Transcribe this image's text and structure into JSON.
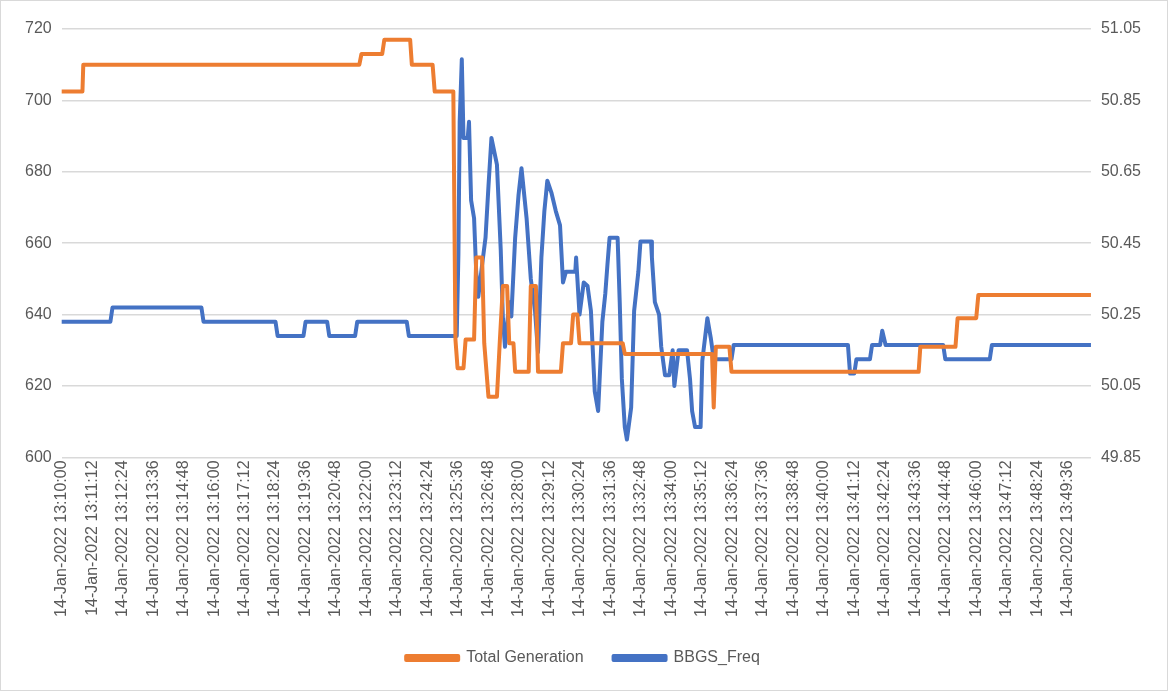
{
  "chart_data": {
    "type": "line",
    "xlim": [
      "2022-01-14T13:10:00",
      "2022-01-14T13:50:31"
    ],
    "xticks": [
      {
        "value": "2022-01-14T13:10:00",
        "label": "14-Jan-2022 13:10:00"
      },
      {
        "value": "2022-01-14T13:11:12",
        "label": "14-Jan-2022 13:11:12"
      },
      {
        "value": "2022-01-14T13:12:24",
        "label": "14-Jan-2022 13:12:24"
      },
      {
        "value": "2022-01-14T13:13:36",
        "label": "14-Jan-2022 13:13:36"
      },
      {
        "value": "2022-01-14T13:14:48",
        "label": "14-Jan-2022 13:14:48"
      },
      {
        "value": "2022-01-14T13:16:00",
        "label": "14-Jan-2022 13:16:00"
      },
      {
        "value": "2022-01-14T13:17:12",
        "label": "14-Jan-2022 13:17:12"
      },
      {
        "value": "2022-01-14T13:18:24",
        "label": "14-Jan-2022 13:18:24"
      },
      {
        "value": "2022-01-14T13:19:36",
        "label": "14-Jan-2022 13:19:36"
      },
      {
        "value": "2022-01-14T13:20:48",
        "label": "14-Jan-2022 13:20:48"
      },
      {
        "value": "2022-01-14T13:22:00",
        "label": "14-Jan-2022 13:22:00"
      },
      {
        "value": "2022-01-14T13:23:12",
        "label": "14-Jan-2022 13:23:12"
      },
      {
        "value": "2022-01-14T13:24:24",
        "label": "14-Jan-2022 13:24:24"
      },
      {
        "value": "2022-01-14T13:25:36",
        "label": "14-Jan-2022 13:25:36"
      },
      {
        "value": "2022-01-14T13:26:48",
        "label": "14-Jan-2022 13:26:48"
      },
      {
        "value": "2022-01-14T13:28:00",
        "label": "14-Jan-2022 13:28:00"
      },
      {
        "value": "2022-01-14T13:29:12",
        "label": "14-Jan-2022 13:29:12"
      },
      {
        "value": "2022-01-14T13:30:24",
        "label": "14-Jan-2022 13:30:24"
      },
      {
        "value": "2022-01-14T13:31:36",
        "label": "14-Jan-2022 13:31:36"
      },
      {
        "value": "2022-01-14T13:32:48",
        "label": "14-Jan-2022 13:32:48"
      },
      {
        "value": "2022-01-14T13:34:00",
        "label": "14-Jan-2022 13:34:00"
      },
      {
        "value": "2022-01-14T13:35:12",
        "label": "14-Jan-2022 13:35:12"
      },
      {
        "value": "2022-01-14T13:36:24",
        "label": "14-Jan-2022 13:36:24"
      },
      {
        "value": "2022-01-14T13:37:36",
        "label": "14-Jan-2022 13:37:36"
      },
      {
        "value": "2022-01-14T13:38:48",
        "label": "14-Jan-2022 13:38:48"
      },
      {
        "value": "2022-01-14T13:40:00",
        "label": "14-Jan-2022 13:40:00"
      },
      {
        "value": "2022-01-14T13:41:12",
        "label": "14-Jan-2022 13:41:12"
      },
      {
        "value": "2022-01-14T13:42:24",
        "label": "14-Jan-2022 13:42:24"
      },
      {
        "value": "2022-01-14T13:43:36",
        "label": "14-Jan-2022 13:43:36"
      },
      {
        "value": "2022-01-14T13:44:48",
        "label": "14-Jan-2022 13:44:48"
      },
      {
        "value": "2022-01-14T13:46:00",
        "label": "14-Jan-2022 13:46:00"
      },
      {
        "value": "2022-01-14T13:47:12",
        "label": "14-Jan-2022 13:47:12"
      },
      {
        "value": "2022-01-14T13:48:24",
        "label": "14-Jan-2022 13:48:24"
      },
      {
        "value": "2022-01-14T13:49:36",
        "label": "14-Jan-2022 13:49:36"
      }
    ],
    "ylim": [
      600,
      720
    ],
    "yticks": [
      600,
      620,
      640,
      660,
      680,
      700,
      720
    ],
    "y2lim": [
      49.85,
      51.05
    ],
    "y2ticks": [
      49.85,
      50.05,
      50.25,
      50.45,
      50.65,
      50.85,
      51.05
    ],
    "grid": "y",
    "legend": "bottom",
    "marker": "none",
    "line_style": "solid",
    "series": [
      {
        "name": "Total Generation",
        "color": "#ed7d31",
        "x": [
          "2022-01-14T13:10:00",
          "2022-01-14T13:10:49",
          "2022-01-14T13:10:51",
          "2022-01-14T13:21:43",
          "2022-01-14T13:21:48",
          "2022-01-14T13:22:37",
          "2022-01-14T13:22:42",
          "2022-01-14T13:23:43",
          "2022-01-14T13:23:47",
          "2022-01-14T13:24:36",
          "2022-01-14T13:24:41",
          "2022-01-14T13:25:25",
          "2022-01-14T13:25:27",
          "2022-01-14T13:25:30",
          "2022-01-14T13:25:35",
          "2022-01-14T13:25:49",
          "2022-01-14T13:25:54",
          "2022-01-14T13:26:14",
          "2022-01-14T13:26:19",
          "2022-01-14T13:26:33",
          "2022-01-14T13:26:38",
          "2022-01-14T13:26:48",
          "2022-01-14T13:27:08",
          "2022-01-14T13:27:15",
          "2022-01-14T13:27:22",
          "2022-01-14T13:27:32",
          "2022-01-14T13:27:37",
          "2022-01-14T13:27:47",
          "2022-01-14T13:27:51",
          "2022-01-14T13:28:23",
          "2022-01-14T13:28:28",
          "2022-01-14T13:28:40",
          "2022-01-14T13:28:45",
          "2022-01-14T13:29:39",
          "2022-01-14T13:29:44",
          "2022-01-14T13:30:03",
          "2022-01-14T13:30:08",
          "2022-01-14T13:30:18",
          "2022-01-14T13:30:23",
          "2022-01-14T13:32:05",
          "2022-01-14T13:32:10",
          "2022-01-14T13:35:36",
          "2022-01-14T13:35:40",
          "2022-01-14T13:35:45",
          "2022-01-14T13:36:17",
          "2022-01-14T13:36:22",
          "2022-01-14T13:43:44",
          "2022-01-14T13:43:48",
          "2022-01-14T13:45:11",
          "2022-01-14T13:45:16",
          "2022-01-14T13:46:00",
          "2022-01-14T13:46:05",
          "2022-01-14T13:50:31"
        ],
        "values": [
          702.5,
          702.5,
          710,
          710,
          713,
          713,
          717,
          717,
          710,
          710,
          702.5,
          702.5,
          675,
          633,
          625,
          625,
          633,
          633,
          656,
          656,
          632,
          617,
          617,
          633,
          648,
          648,
          632,
          632,
          624,
          624,
          648,
          648,
          624,
          624,
          632,
          632,
          640,
          640,
          632,
          632,
          629,
          629,
          614,
          631,
          631,
          624,
          624,
          631,
          631,
          639,
          639,
          645.5,
          645.5
        ]
      },
      {
        "name": "BBGS_Freq",
        "color": "#4472c4",
        "axis": "y2",
        "x": [
          "2022-01-14T13:10:00",
          "2022-01-14T13:11:55",
          "2022-01-14T13:12:00",
          "2022-01-14T13:15:30",
          "2022-01-14T13:15:35",
          "2022-01-14T13:18:25",
          "2022-01-14T13:18:30",
          "2022-01-14T13:19:31",
          "2022-01-14T13:19:36",
          "2022-01-14T13:20:27",
          "2022-01-14T13:20:32",
          "2022-01-14T13:21:33",
          "2022-01-14T13:21:38",
          "2022-01-14T13:23:35",
          "2022-01-14T13:23:40",
          "2022-01-14T13:25:33",
          "2022-01-14T13:25:37",
          "2022-01-14T13:25:40",
          "2022-01-14T13:25:45",
          "2022-01-14T13:25:49",
          "2022-01-14T13:25:59",
          "2022-01-14T13:26:02",
          "2022-01-14T13:26:07",
          "2022-01-14T13:26:14",
          "2022-01-14T13:26:19",
          "2022-01-14T13:26:24",
          "2022-01-14T13:26:33",
          "2022-01-14T13:26:41",
          "2022-01-14T13:26:48",
          "2022-01-14T13:26:55",
          "2022-01-14T13:27:08",
          "2022-01-14T13:27:17",
          "2022-01-14T13:27:22",
          "2022-01-14T13:27:27",
          "2022-01-14T13:27:37",
          "2022-01-14T13:27:42",
          "2022-01-14T13:27:51",
          "2022-01-14T13:27:59",
          "2022-01-14T13:28:06",
          "2022-01-14T13:28:18",
          "2022-01-14T13:28:28",
          "2022-01-14T13:28:38",
          "2022-01-14T13:28:45",
          "2022-01-14T13:28:53",
          "2022-01-14T13:29:00",
          "2022-01-14T13:29:07",
          "2022-01-14T13:29:17",
          "2022-01-14T13:29:27",
          "2022-01-14T13:29:37",
          "2022-01-14T13:29:44",
          "2022-01-14T13:29:51",
          "2022-01-14T13:30:13",
          "2022-01-14T13:30:15",
          "2022-01-14T13:30:23",
          "2022-01-14T13:30:33",
          "2022-01-14T13:30:42",
          "2022-01-14T13:30:50",
          "2022-01-14T13:30:59",
          "2022-01-14T13:31:07",
          "2022-01-14T13:31:17",
          "2022-01-14T13:31:24",
          "2022-01-14T13:31:29",
          "2022-01-14T13:31:34",
          "2022-01-14T13:31:53",
          "2022-01-14T13:31:58",
          "2022-01-14T13:32:03",
          "2022-01-14T13:32:10",
          "2022-01-14T13:32:15",
          "2022-01-14T13:32:25",
          "2022-01-14T13:32:32",
          "2022-01-14T13:32:42",
          "2022-01-14T13:32:47",
          "2022-01-14T13:33:12",
          "2022-01-14T13:33:14",
          "2022-01-14T13:33:21",
          "2022-01-14T13:33:31",
          "2022-01-14T13:33:36",
          "2022-01-14T13:33:45",
          "2022-01-14T13:33:55",
          "2022-01-14T13:34:03",
          "2022-01-14T13:34:07",
          "2022-01-14T13:34:17",
          "2022-01-14T13:34:37",
          "2022-01-14T13:34:44",
          "2022-01-14T13:34:49",
          "2022-01-14T13:34:56",
          "2022-01-14T13:35:09",
          "2022-01-14T13:35:13",
          "2022-01-14T13:35:25",
          "2022-01-14T13:35:33",
          "2022-01-14T13:35:40",
          "2022-01-14T13:36:22",
          "2022-01-14T13:36:27",
          "2022-01-14T13:40:57",
          "2022-01-14T13:41:02",
          "2022-01-14T13:41:12",
          "2022-01-14T13:41:17",
          "2022-01-14T13:41:49",
          "2022-01-14T13:41:54",
          "2022-01-14T13:42:13",
          "2022-01-14T13:42:18",
          "2022-01-14T13:42:26",
          "2022-01-14T13:44:42",
          "2022-01-14T13:44:47",
          "2022-01-14T13:46:32",
          "2022-01-14T13:46:37",
          "2022-01-14T13:50:31"
        ],
        "values": [
          50.23,
          50.23,
          50.27,
          50.27,
          50.23,
          50.23,
          50.19,
          50.19,
          50.23,
          50.23,
          50.19,
          50.19,
          50.23,
          50.23,
          50.19,
          50.19,
          50.42,
          50.79,
          50.965,
          50.745,
          50.745,
          50.79,
          50.57,
          50.52,
          50.37,
          50.3,
          50.39,
          50.465,
          50.61,
          50.745,
          50.67,
          50.43,
          50.24,
          50.16,
          50.285,
          50.245,
          50.465,
          50.585,
          50.66,
          50.52,
          50.35,
          50.26,
          50.145,
          50.41,
          50.54,
          50.625,
          50.59,
          50.54,
          50.5,
          50.34,
          50.37,
          50.37,
          50.41,
          50.25,
          50.34,
          50.33,
          50.26,
          50.035,
          49.98,
          50.23,
          50.31,
          50.39,
          50.465,
          50.465,
          50.285,
          50.07,
          49.935,
          49.9,
          49.99,
          50.26,
          50.37,
          50.455,
          50.455,
          50.41,
          50.285,
          50.25,
          50.16,
          50.08,
          50.08,
          50.15,
          50.05,
          50.15,
          50.15,
          50.07,
          49.98,
          49.935,
          49.935,
          50.12,
          50.24,
          50.185,
          50.125,
          50.125,
          50.165,
          50.165,
          50.085,
          50.085,
          50.125,
          50.125,
          50.165,
          50.165,
          50.205,
          50.165,
          50.165,
          50.125,
          50.125,
          50.165,
          50.165
        ]
      }
    ]
  }
}
